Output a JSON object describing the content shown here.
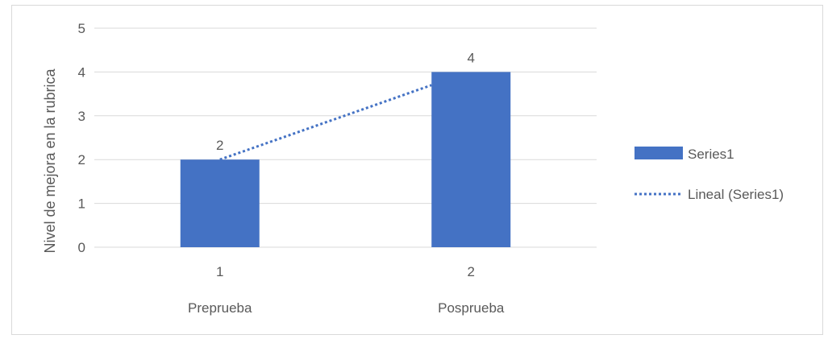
{
  "chart_data": {
    "type": "bar",
    "categories": [
      "1",
      "2"
    ],
    "category_labels": [
      "Preprueba",
      "Posprueba"
    ],
    "series": [
      {
        "name": "Series1",
        "values": [
          2,
          4
        ],
        "color": "#4472c4"
      }
    ],
    "trendline": {
      "name": "Lineal (Series1)",
      "type": "linear",
      "style": "dotted",
      "color": "#4472c4",
      "values": [
        2,
        3.7
      ]
    },
    "data_labels": [
      "2",
      "4"
    ],
    "ylabel": "Nivel de mejora  en la rubrica",
    "xlabel": "",
    "title": "",
    "ylim": [
      0,
      5
    ],
    "yticks": [
      "0",
      "1",
      "2",
      "3",
      "4",
      "5"
    ],
    "grid": true,
    "legend": {
      "position": "right",
      "items": [
        "Series1",
        "Lineal (Series1)"
      ]
    }
  }
}
